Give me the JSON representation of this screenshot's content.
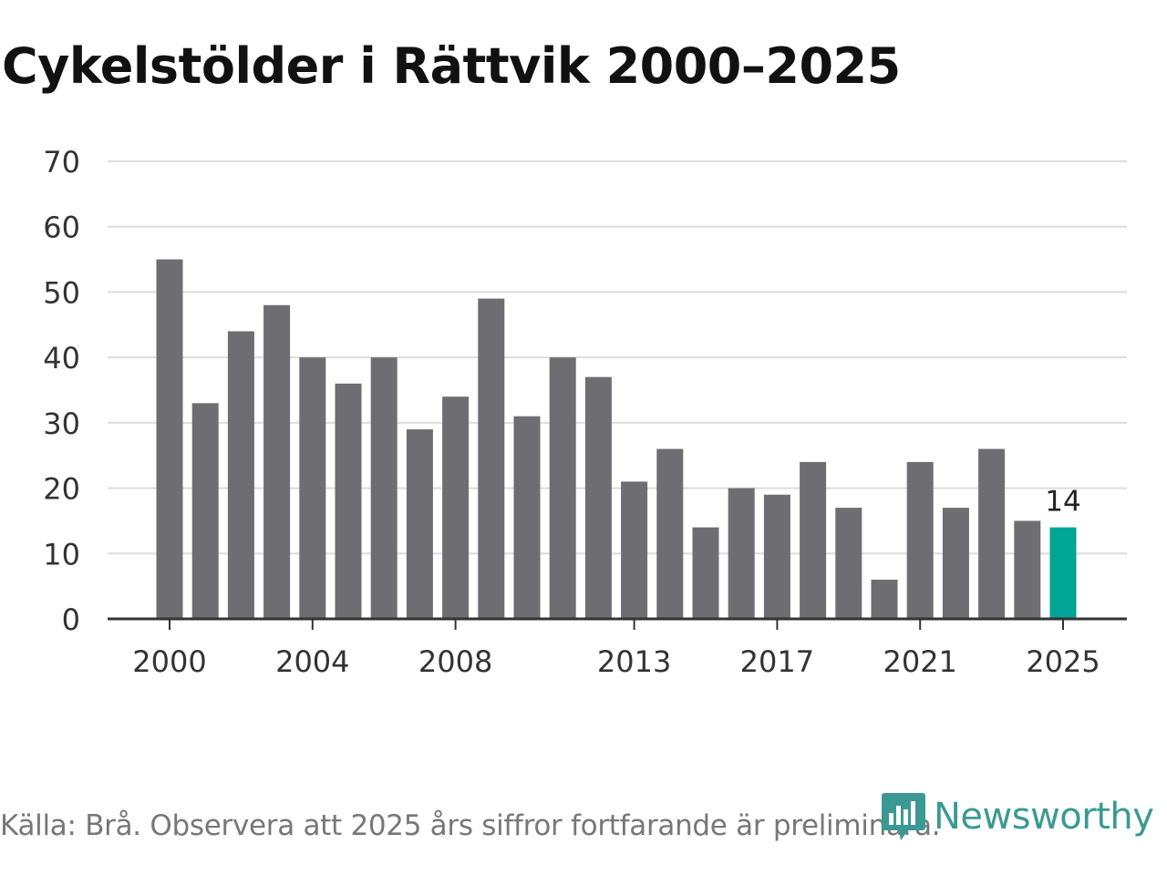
{
  "title": "Cykelstölder i Rättvik 2000–2025",
  "footer": {
    "source": "Källa: Brå. Observera att 2025 års siffror fortfarande är preliminära."
  },
  "brand": {
    "name": "Newsworthy",
    "color": "#3a9a93",
    "logo_icon": "bar-chart-logo-icon"
  },
  "colors": {
    "bar": "#6e6d72",
    "highlight": "#00a595",
    "grid": "#dddddd",
    "axis": "#333333",
    "text": "#333333"
  },
  "chart_data": {
    "type": "bar",
    "title": "Cykelstölder i Rättvik 2000–2025",
    "xlabel": "",
    "ylabel": "",
    "categories": [
      "2000",
      "2001",
      "2002",
      "2003",
      "2004",
      "2005",
      "2006",
      "2007",
      "2008",
      "2009",
      "2010",
      "2011",
      "2012",
      "2013",
      "2014",
      "2015",
      "2016",
      "2017",
      "2018",
      "2019",
      "2020",
      "2021",
      "2022",
      "2023",
      "2024",
      "2025"
    ],
    "values": [
      55,
      33,
      44,
      48,
      40,
      36,
      40,
      29,
      34,
      49,
      31,
      40,
      37,
      21,
      26,
      14,
      20,
      19,
      24,
      17,
      6,
      24,
      17,
      26,
      15,
      14
    ],
    "ylim": [
      0,
      70
    ],
    "yticks": [
      0,
      10,
      20,
      30,
      40,
      50,
      60,
      70
    ],
    "xtick_labels": [
      "2000",
      "2004",
      "2008",
      "2013",
      "2017",
      "2021",
      "2025"
    ],
    "highlight": {
      "category": "2025",
      "label": "14"
    },
    "grid": true
  }
}
